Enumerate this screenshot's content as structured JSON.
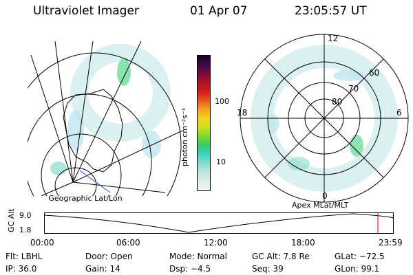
{
  "header": {
    "title": "Ultraviolet Imager",
    "date": "01 Apr 07",
    "time": "23:05:57 UT"
  },
  "left_panel": {
    "caption": "Geographic Lat/Lon"
  },
  "right_panel": {
    "caption": "Apex MLat/MLT",
    "mlt_labels": {
      "top": "12",
      "left": "18",
      "right": "6",
      "bottom": "0"
    },
    "lat_labels": [
      "60",
      "70",
      "80"
    ]
  },
  "colorbar": {
    "unit_label": "photon cm⁻²s⁻¹",
    "ticks": [
      "100",
      "10"
    ],
    "colors": [
      "#f2f7f4",
      "#dcefe8",
      "#bfe6e0",
      "#86dccf",
      "#3dd3c2",
      "#2ecc71",
      "#7fd627",
      "#c9e21c",
      "#f3d41a",
      "#f7a21b",
      "#e8551c",
      "#d41d1d",
      "#b0102a",
      "#7a0b3a",
      "#3a0a4c",
      "#150320"
    ]
  },
  "timeline": {
    "axis_label": "GC Alt",
    "y_ticks": [
      "9.0",
      "1.8"
    ],
    "x_ticks": [
      "00:00",
      "06:00",
      "12:00",
      "18:00",
      "23:59"
    ],
    "marker_color": "#e02020"
  },
  "info": {
    "row1": {
      "flt": "Flt: LBHL",
      "door": "Door: Open",
      "mode": "Mode: Normal",
      "gcalt": "GC Alt: 7.8 Re",
      "glat": "GLat: −72.5"
    },
    "row2": {
      "ip": "IP: 36.0",
      "gain": "Gain: 14",
      "dsp": "Dsp:    −4.5",
      "seq": "Seq: 39",
      "glon": "GLon:  99.1"
    }
  }
}
